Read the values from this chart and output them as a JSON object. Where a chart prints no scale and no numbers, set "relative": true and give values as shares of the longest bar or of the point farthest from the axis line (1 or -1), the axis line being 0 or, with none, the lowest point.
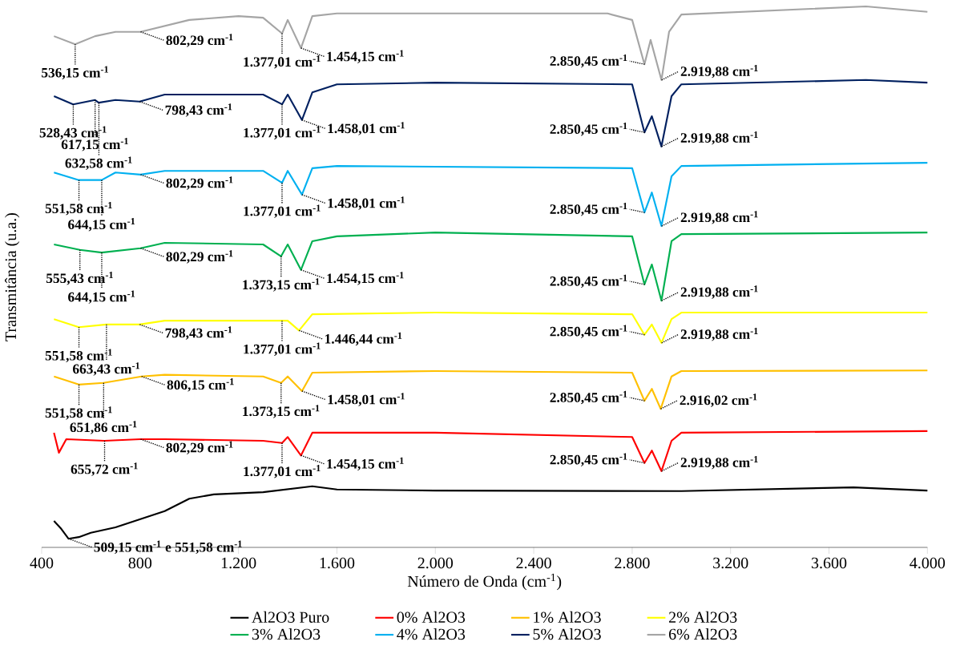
{
  "chart_data": {
    "type": "line",
    "relative": true,
    "xlabel": "Número de Onda (cm$^{-1}$)",
    "ylabel": "Transmitância (u.a.)",
    "xlim": [
      400,
      4000
    ],
    "xticks": [
      400,
      800,
      {
        "value": 1200,
        "label": "1.200"
      },
      {
        "value": 1600,
        "label": "1.600"
      },
      {
        "value": 2000,
        "label": "2.000"
      },
      {
        "value": 2400,
        "label": "2.400"
      },
      {
        "value": 2800,
        "label": "2.800"
      },
      {
        "value": 3200,
        "label": "3.200"
      },
      {
        "value": 3600,
        "label": "3.600"
      },
      {
        "value": 4000,
        "label": "4.000"
      }
    ],
    "legend": "bottom",
    "marker": "none",
    "line_style": "solid",
    "series": [
      {
        "name": "Al2O3 Puro",
        "color": "#000000",
        "x": [
          450,
          480,
          509,
          551,
          600,
          700,
          800,
          900,
          1000,
          1100,
          1300,
          1500,
          1600,
          2000,
          3000,
          3700,
          4000
        ],
        "values": [
          0.049,
          0.034,
          0.016,
          0.019,
          0.027,
          0.037,
          0.052,
          0.067,
          0.09,
          0.098,
          0.102,
          0.113,
          0.107,
          0.105,
          0.104,
          0.111,
          0.105
        ]
      },
      {
        "name": "0% Al2O3",
        "color": "#ff0000",
        "x": [
          450,
          470,
          500,
          655,
          802,
          900,
          1300,
          1377,
          1400,
          1454,
          1500,
          2000,
          2800,
          2850,
          2880,
          2919,
          2960,
          3000,
          4000
        ],
        "values": [
          0.212,
          0.175,
          0.2,
          0.197,
          0.2,
          0.2,
          0.197,
          0.193,
          0.204,
          0.17,
          0.212,
          0.212,
          0.204,
          0.156,
          0.179,
          0.141,
          0.197,
          0.212,
          0.215
        ]
      },
      {
        "name": "1% Al2O3",
        "color": "#ffc000",
        "x": [
          450,
          551,
          651,
          806,
          900,
          1300,
          1373,
          1400,
          1458,
          1500,
          2000,
          2800,
          2850,
          2880,
          2916,
          2960,
          3000,
          4000
        ],
        "values": [
          0.316,
          0.301,
          0.304,
          0.316,
          0.319,
          0.316,
          0.304,
          0.316,
          0.289,
          0.323,
          0.326,
          0.323,
          0.271,
          0.293,
          0.256,
          0.316,
          0.326,
          0.327
        ]
      },
      {
        "name": "2% Al2O3",
        "color": "#ffff00",
        "x": [
          450,
          551,
          663,
          798,
          900,
          1300,
          1377,
          1400,
          1446,
          1500,
          2000,
          2800,
          2850,
          2880,
          2919,
          2960,
          3000,
          4000
        ],
        "values": [
          0.422,
          0.407,
          0.412,
          0.412,
          0.419,
          0.419,
          0.419,
          0.419,
          0.401,
          0.431,
          0.434,
          0.431,
          0.393,
          0.412,
          0.378,
          0.422,
          0.434,
          0.434
        ]
      },
      {
        "name": "3% Al2O3",
        "color": "#00b050",
        "x": [
          450,
          555,
          644,
          802,
          900,
          1300,
          1373,
          1400,
          1454,
          1500,
          1600,
          2000,
          2800,
          2850,
          2880,
          2919,
          2960,
          3000,
          4000
        ],
        "values": [
          0.56,
          0.55,
          0.545,
          0.553,
          0.563,
          0.56,
          0.538,
          0.56,
          0.513,
          0.566,
          0.575,
          0.582,
          0.575,
          0.486,
          0.523,
          0.456,
          0.566,
          0.579,
          0.582
        ]
      },
      {
        "name": "4% Al2O3",
        "color": "#00b0f0",
        "x": [
          450,
          551,
          644,
          700,
          802,
          900,
          1300,
          1377,
          1400,
          1458,
          1500,
          1600,
          2800,
          2850,
          2880,
          2919,
          2960,
          3000,
          4000
        ],
        "values": [
          0.693,
          0.679,
          0.679,
          0.693,
          0.689,
          0.696,
          0.696,
          0.674,
          0.696,
          0.652,
          0.701,
          0.705,
          0.701,
          0.619,
          0.656,
          0.594,
          0.686,
          0.705,
          0.711
        ]
      },
      {
        "name": "5% Al2O3",
        "color": "#002060",
        "x": [
          450,
          528,
          617,
          632,
          700,
          798,
          900,
          1300,
          1377,
          1400,
          1458,
          1500,
          1600,
          2000,
          2800,
          2850,
          2880,
          2919,
          2960,
          3000,
          3750,
          4000
        ],
        "values": [
          0.834,
          0.819,
          0.827,
          0.822,
          0.827,
          0.824,
          0.837,
          0.837,
          0.819,
          0.837,
          0.79,
          0.841,
          0.856,
          0.859,
          0.856,
          0.767,
          0.797,
          0.741,
          0.834,
          0.856,
          0.864,
          0.859
        ]
      },
      {
        "name": "6% Al2O3",
        "color": "#a5a5a5",
        "x": [
          450,
          536,
          617,
          700,
          802,
          1000,
          1200,
          1300,
          1377,
          1400,
          1454,
          1500,
          1600,
          2000,
          2700,
          2800,
          2850,
          2875,
          2919,
          2950,
          3000,
          3750,
          4000
        ],
        "values": [
          0.945,
          0.93,
          0.945,
          0.953,
          0.953,
          0.975,
          0.982,
          0.979,
          0.95,
          0.975,
          0.923,
          0.982,
          0.987,
          0.987,
          0.987,
          0.975,
          0.893,
          0.938,
          0.864,
          0.953,
          0.985,
          1.0,
          0.99
        ]
      }
    ],
    "annotations": [
      {
        "text": "509,15 cm$^{-1}$ e 551,58 cm$^{-1}$",
        "x": 509.15,
        "y": 0.016
      },
      {
        "text": "655,72 cm$^{-1}$",
        "x": 655.72,
        "y": 0.197
      },
      {
        "text": "802,29 cm$^{-1}$",
        "x": 802.29,
        "y": 0.2
      },
      {
        "text": "1.377,01 cm$^{-1}$",
        "x": 1377.01,
        "y": 0.193
      },
      {
        "text": "1.454,15 cm$^{-1}$",
        "x": 1454.15,
        "y": 0.17
      },
      {
        "text": "2.850,45 cm$^{-1}$",
        "x": 2850.45,
        "y": 0.156
      },
      {
        "text": "2.919,88 cm$^{-1}$",
        "x": 2919.88,
        "y": 0.141
      },
      {
        "text": "551,58 cm$^{-1}$",
        "x": 551.58,
        "y": 0.301
      },
      {
        "text": "651,86 cm$^{-1}$",
        "x": 651.86,
        "y": 0.304
      },
      {
        "text": "806,15 cm$^{-1}$",
        "x": 806.15,
        "y": 0.316
      },
      {
        "text": "1.373,15 cm$^{-1}$",
        "x": 1373.15,
        "y": 0.304
      },
      {
        "text": "1.458,01 cm$^{-1}$",
        "x": 1458.01,
        "y": 0.289
      },
      {
        "text": "2.850,45 cm$^{-1}$",
        "x": 2850.45,
        "y": 0.271
      },
      {
        "text": "2.916,02 cm$^{-1}$",
        "x": 2916.02,
        "y": 0.256
      },
      {
        "text": "551,58 cm$^{-1}$",
        "x": 551.58,
        "y": 0.407
      },
      {
        "text": "663,43 cm$^{-1}$",
        "x": 663.43,
        "y": 0.412
      },
      {
        "text": "798,43 cm$^{-1}$",
        "x": 798.43,
        "y": 0.412
      },
      {
        "text": "1.377,01 cm$^{-1}$",
        "x": 1377.01,
        "y": 0.419
      },
      {
        "text": "1.446,44 cm$^{-1}$",
        "x": 1446.44,
        "y": 0.401
      },
      {
        "text": "2.850,45 cm$^{-1}$",
        "x": 2850.45,
        "y": 0.393
      },
      {
        "text": "2.919,88 cm$^{-1}$",
        "x": 2919.88,
        "y": 0.378
      },
      {
        "text": "555,43 cm$^{-1}$",
        "x": 555.43,
        "y": 0.55
      },
      {
        "text": "644,15 cm$^{-1}$",
        "x": 644.15,
        "y": 0.545
      },
      {
        "text": "802,29 cm$^{-1}$",
        "x": 802.29,
        "y": 0.553
      },
      {
        "text": "1.373,15 cm$^{-1}$",
        "x": 1373.15,
        "y": 0.538
      },
      {
        "text": "1.454,15 cm$^{-1}$",
        "x": 1454.15,
        "y": 0.513
      },
      {
        "text": "2.850,45 cm$^{-1}$",
        "x": 2850.45,
        "y": 0.486
      },
      {
        "text": "2.919,88 cm$^{-1}$",
        "x": 2919.88,
        "y": 0.456
      },
      {
        "text": "551,58 cm$^{-1}$",
        "x": 551.58,
        "y": 0.679
      },
      {
        "text": "644,15 cm$^{-1}$",
        "x": 644.15,
        "y": 0.679
      },
      {
        "text": "802,29 cm$^{-1}$",
        "x": 802.29,
        "y": 0.689
      },
      {
        "text": "1.377,01 cm$^{-1}$",
        "x": 1377.01,
        "y": 0.674
      },
      {
        "text": "1.458,01 cm$^{-1}$",
        "x": 1458.01,
        "y": 0.652
      },
      {
        "text": "2.850,45 cm$^{-1}$",
        "x": 2850.45,
        "y": 0.619
      },
      {
        "text": "2.919,88 cm$^{-1}$",
        "x": 2919.88,
        "y": 0.594
      },
      {
        "text": "528,43 cm$^{-1}$",
        "x": 528.43,
        "y": 0.819
      },
      {
        "text": "617,15 cm$^{-1}$",
        "x": 617.15,
        "y": 0.827
      },
      {
        "text": "632,58 cm$^{-1}$",
        "x": 632.58,
        "y": 0.822
      },
      {
        "text": "798,43 cm$^{-1}$",
        "x": 798.43,
        "y": 0.824
      },
      {
        "text": "1.377,01 cm$^{-1}$",
        "x": 1377.01,
        "y": 0.819
      },
      {
        "text": "1.458,01 cm$^{-1}$",
        "x": 1458.01,
        "y": 0.79
      },
      {
        "text": "2.850,45 cm$^{-1}$",
        "x": 2850.45,
        "y": 0.767
      },
      {
        "text": "2.919,88 cm$^{-1}$",
        "x": 2919.88,
        "y": 0.741
      },
      {
        "text": "536,15 cm$^{-1}$",
        "x": 536.15,
        "y": 0.93
      },
      {
        "text": "802,29 cm$^{-1}$",
        "x": 802.29,
        "y": 0.953
      },
      {
        "text": "1.377,01 cm$^{-1}$",
        "x": 1377.01,
        "y": 0.95
      },
      {
        "text": "1.454,15 cm$^{-1}$",
        "x": 1454.15,
        "y": 0.923
      },
      {
        "text": "2.850,45 cm$^{-1}$",
        "x": 2850.45,
        "y": 0.893
      },
      {
        "text": "2.919,88 cm$^{-1}$",
        "x": 2919.88,
        "y": 0.864
      }
    ]
  }
}
